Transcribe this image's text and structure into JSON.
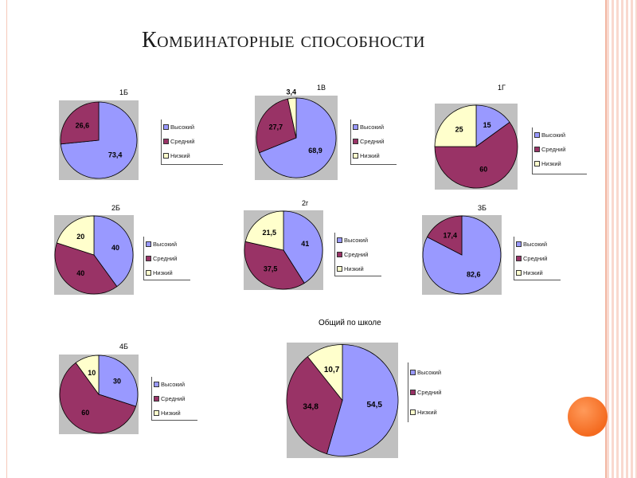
{
  "title": "Комбинаторные способности",
  "colors": {
    "high": "#9999ff",
    "mid": "#993366",
    "low": "#ffffcc",
    "plot_bg": "#c0c0c0",
    "accent": "#f46a1f"
  },
  "legend_labels": {
    "high": "Высокий",
    "mid": "Средний",
    "low": "Низкий"
  },
  "chart_data": [
    {
      "id": "1b",
      "type": "pie",
      "title": "1Б",
      "slices": [
        {
          "key": "high",
          "value": 73.4,
          "label": "73,4"
        },
        {
          "key": "mid",
          "value": 26.6,
          "label": "26,6"
        },
        {
          "key": "low",
          "value": 0,
          "label": ""
        }
      ]
    },
    {
      "id": "1v",
      "type": "pie",
      "title": "1В",
      "slices": [
        {
          "key": "high",
          "value": 68.9,
          "label": "68,9"
        },
        {
          "key": "mid",
          "value": 27.7,
          "label": "27,7"
        },
        {
          "key": "low",
          "value": 3.4,
          "label": "3,4"
        }
      ]
    },
    {
      "id": "1g",
      "type": "pie",
      "title": "1Г",
      "slices": [
        {
          "key": "high",
          "value": 15,
          "label": "15"
        },
        {
          "key": "mid",
          "value": 60,
          "label": "60"
        },
        {
          "key": "low",
          "value": 25,
          "label": "25"
        }
      ]
    },
    {
      "id": "2b",
      "type": "pie",
      "title": "2Б",
      "slices": [
        {
          "key": "high",
          "value": 40,
          "label": "40"
        },
        {
          "key": "mid",
          "value": 40,
          "label": "40"
        },
        {
          "key": "low",
          "value": 20,
          "label": "20"
        }
      ]
    },
    {
      "id": "2g",
      "type": "pie",
      "title": "2г",
      "slices": [
        {
          "key": "high",
          "value": 41,
          "label": "41"
        },
        {
          "key": "mid",
          "value": 37.5,
          "label": "37,5"
        },
        {
          "key": "low",
          "value": 21.5,
          "label": "21,5"
        }
      ]
    },
    {
      "id": "3b",
      "type": "pie",
      "title": "3Б",
      "slices": [
        {
          "key": "high",
          "value": 82.6,
          "label": "82,6"
        },
        {
          "key": "mid",
          "value": 17.4,
          "label": "17,4"
        },
        {
          "key": "low",
          "value": 0,
          "label": ""
        }
      ]
    },
    {
      "id": "4b",
      "type": "pie",
      "title": "4Б",
      "slices": [
        {
          "key": "high",
          "value": 30,
          "label": "30"
        },
        {
          "key": "mid",
          "value": 60,
          "label": "60"
        },
        {
          "key": "low",
          "value": 10,
          "label": "10"
        }
      ]
    },
    {
      "id": "school",
      "type": "pie",
      "title": "Общий по школе",
      "slices": [
        {
          "key": "high",
          "value": 54.5,
          "label": "54,5"
        },
        {
          "key": "mid",
          "value": 34.8,
          "label": "34,8"
        },
        {
          "key": "low",
          "value": 10.7,
          "label": "10,7"
        }
      ]
    }
  ]
}
